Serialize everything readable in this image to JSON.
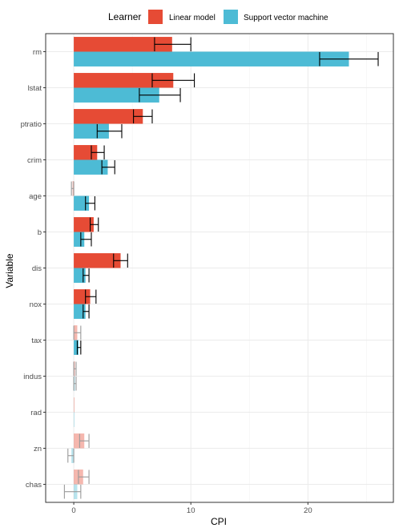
{
  "legend": {
    "title": "Learner",
    "items": [
      {
        "label": "Linear model",
        "color": "#E64B35"
      },
      {
        "label": "Support vector machine",
        "color": "#4DBBD5"
      }
    ]
  },
  "chart_data": {
    "type": "bar",
    "orientation": "horizontal",
    "title": "",
    "xlabel": "CPI",
    "ylabel": "Variable",
    "xlim": [
      -2.4,
      27.3
    ],
    "x_ticks": [
      0,
      10,
      20
    ],
    "grid": true,
    "legend_position": "top",
    "categories": [
      "rm",
      "lstat",
      "ptratio",
      "crim",
      "age",
      "b",
      "dis",
      "nox",
      "tax",
      "indus",
      "rad",
      "zn",
      "chas"
    ],
    "series": [
      {
        "name": "Linear model",
        "color": "#E64B35",
        "values": [
          8.4,
          8.5,
          5.9,
          2.0,
          -0.1,
          1.7,
          4.0,
          1.4,
          0.3,
          0.1,
          0.0,
          0.9,
          0.8
        ],
        "error_low": [
          6.9,
          6.7,
          5.1,
          1.5,
          -0.2,
          1.4,
          3.4,
          1.0,
          0.0,
          0.0,
          0.0,
          0.5,
          0.4
        ],
        "error_high": [
          10.0,
          10.3,
          6.7,
          2.6,
          0.0,
          2.1,
          4.6,
          1.9,
          0.6,
          0.2,
          0.0,
          1.3,
          1.3
        ],
        "significant": [
          true,
          true,
          true,
          true,
          false,
          true,
          true,
          true,
          false,
          false,
          false,
          false,
          false
        ]
      },
      {
        "name": "Support vector machine",
        "color": "#4DBBD5",
        "values": [
          23.5,
          7.3,
          3.0,
          2.9,
          1.3,
          0.9,
          1.0,
          1.0,
          0.4,
          0.1,
          0.0,
          -0.2,
          0.3
        ],
        "error_low": [
          21.0,
          5.6,
          2.0,
          2.4,
          1.0,
          0.6,
          0.8,
          0.8,
          0.3,
          0.0,
          0.0,
          -0.5,
          -0.8
        ],
        "error_high": [
          26.0,
          9.1,
          4.1,
          3.5,
          1.8,
          1.5,
          1.3,
          1.3,
          0.6,
          0.2,
          0.0,
          0.0,
          0.6
        ],
        "significant": [
          true,
          true,
          true,
          true,
          true,
          true,
          true,
          true,
          true,
          false,
          false,
          false,
          false
        ]
      }
    ]
  }
}
